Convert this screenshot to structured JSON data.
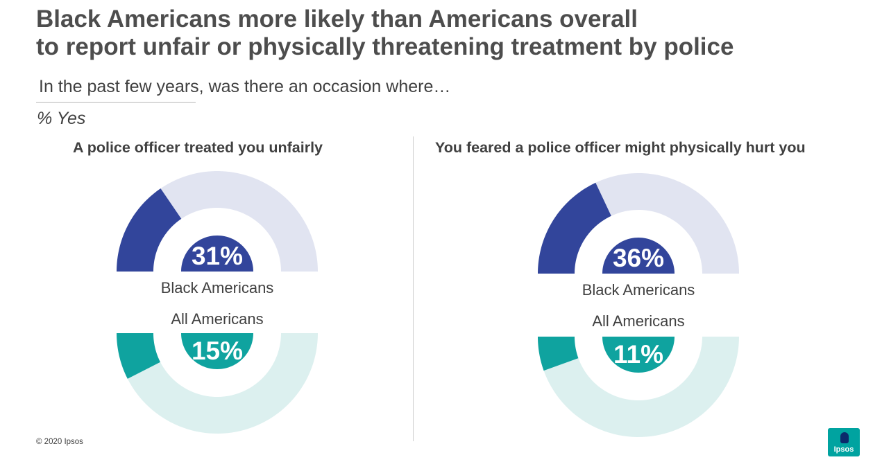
{
  "title_line1": "Black Americans more likely than Americans overall",
  "title_line2": "to report unfair or physically threatening treatment by police",
  "subtitle": "In the past few years, was there an occasion where…",
  "unit_label": "% Yes",
  "colors": {
    "black_americans": "#32459b",
    "black_americans_track": "#e1e4f1",
    "all_americans": "#0fa39f",
    "all_americans_track": "#dcf0ef"
  },
  "chart_data": [
    {
      "type": "pie",
      "title": "A police officer treated you unfairly",
      "series": [
        {
          "name": "Black Americans",
          "value": 31,
          "label": "31%"
        },
        {
          "name": "All Americans",
          "value": 15,
          "label": "15%"
        }
      ]
    },
    {
      "type": "pie",
      "title": "You feared a police officer might physically hurt you",
      "series": [
        {
          "name": "Black Americans",
          "value": 36,
          "label": "36%"
        },
        {
          "name": "All Americans",
          "value": 11,
          "label": "11%"
        }
      ]
    }
  ],
  "footer": {
    "copyright": "© 2020 Ipsos",
    "logo_text": "Ipsos"
  }
}
